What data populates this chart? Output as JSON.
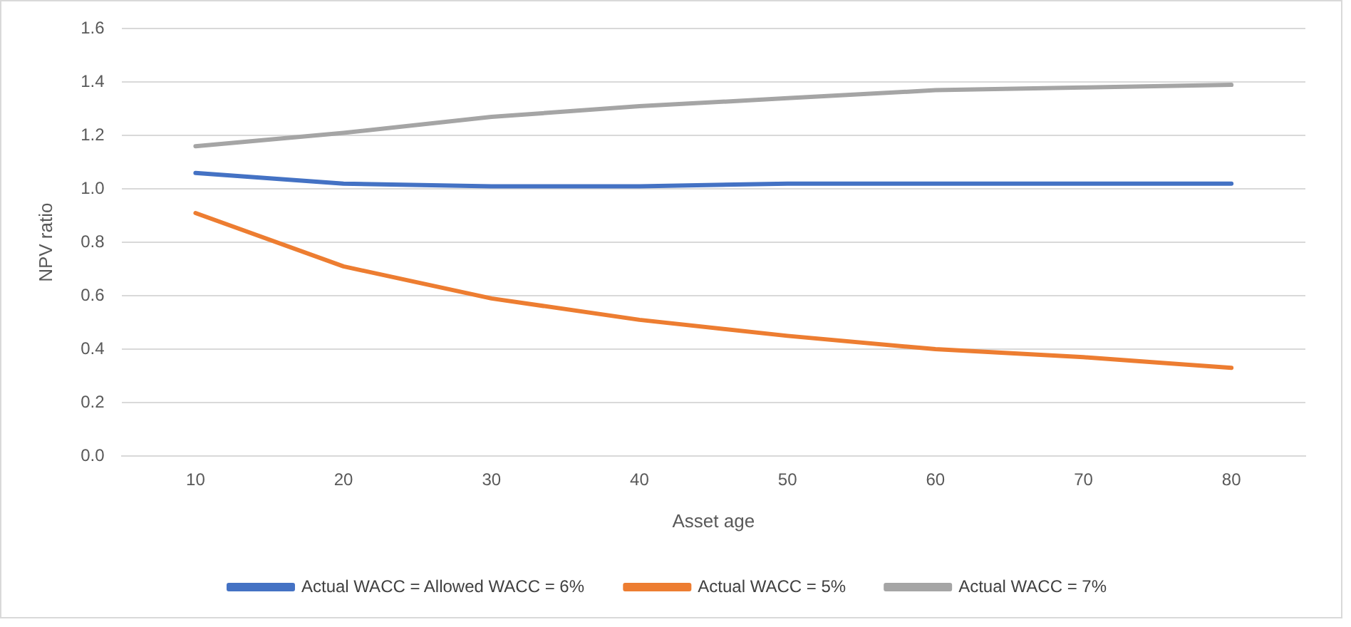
{
  "chart_data": {
    "type": "line",
    "xlabel": "Asset age",
    "ylabel": "NPV ratio",
    "categories": [
      "10",
      "20",
      "30",
      "40",
      "50",
      "60",
      "70",
      "80"
    ],
    "series": [
      {
        "name": "Actual WACC = Allowed WACC = 6%",
        "color": "#4472c4",
        "values": [
          1.06,
          1.02,
          1.01,
          1.01,
          1.02,
          1.02,
          1.02,
          1.02
        ]
      },
      {
        "name": "Actual WACC = 5%",
        "color": "#ed7d31",
        "values": [
          0.91,
          0.71,
          0.59,
          0.51,
          0.45,
          0.4,
          0.37,
          0.33
        ]
      },
      {
        "name": "Actual WACC = 7%",
        "color": "#a5a5a5",
        "values": [
          1.16,
          1.21,
          1.27,
          1.31,
          1.34,
          1.37,
          1.38,
          1.39
        ]
      }
    ],
    "ylim": [
      0,
      1.6
    ],
    "yticks": [
      {
        "value": 0,
        "label": "0.0"
      },
      0.2,
      0.4,
      0.6,
      0.8,
      {
        "value": 1,
        "label": "1.0"
      },
      1.2,
      1.4,
      1.6
    ],
    "grid": "y",
    "legend": "bottom",
    "marker": "none",
    "line_style": "solid"
  }
}
